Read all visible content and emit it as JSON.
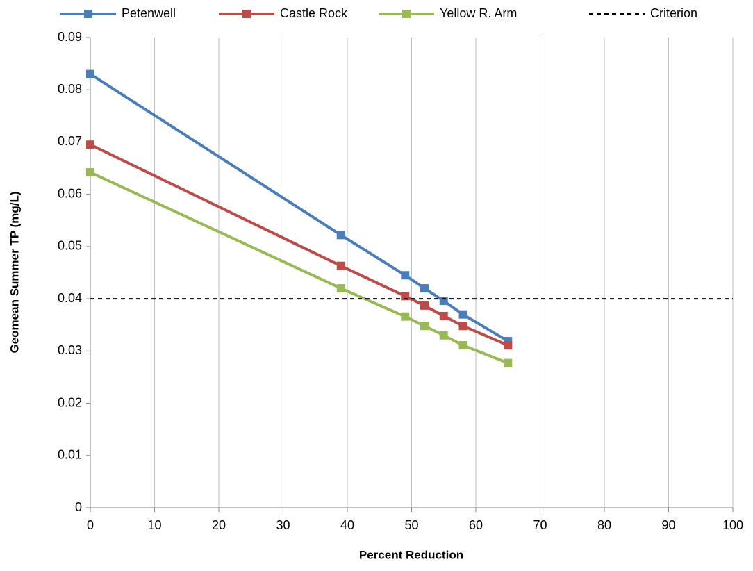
{
  "chart_data": {
    "type": "line",
    "x_label": "Percent Reduction",
    "y_label": "Geomean Summer TP (mg/L)",
    "series": [
      {
        "name": "Petenwell",
        "color": "#4a7ebb",
        "x": [
          0,
          39,
          49,
          52,
          55,
          58,
          65
        ],
        "values": [
          0.083,
          0.0522,
          0.0445,
          0.042,
          0.0396,
          0.037,
          0.0319
        ]
      },
      {
        "name": "Castle Rock",
        "color": "#be4b48",
        "x": [
          0,
          39,
          49,
          52,
          55,
          58,
          65
        ],
        "values": [
          0.0695,
          0.0463,
          0.0405,
          0.0387,
          0.0367,
          0.0348,
          0.0311
        ]
      },
      {
        "name": "Yellow R. Arm",
        "color": "#98b954",
        "x": [
          0,
          39,
          49,
          52,
          55,
          58,
          65
        ],
        "values": [
          0.0642,
          0.042,
          0.0366,
          0.0348,
          0.033,
          0.0311,
          0.0277
        ]
      },
      {
        "name": "Criterion",
        "color": "#000000",
        "dashed": true,
        "x": [
          0,
          100
        ],
        "values": [
          0.04,
          0.04
        ]
      }
    ],
    "xlim": [
      0,
      100
    ],
    "xticks": [
      0,
      10,
      20,
      30,
      40,
      50,
      60,
      70,
      80,
      90,
      100
    ],
    "ylim": [
      0,
      0.09
    ],
    "yticks": [
      0,
      0.01,
      0.02,
      0.03,
      0.04,
      0.05,
      0.06,
      0.07,
      0.08,
      0.09
    ],
    "grid": "x",
    "legend": "top"
  }
}
